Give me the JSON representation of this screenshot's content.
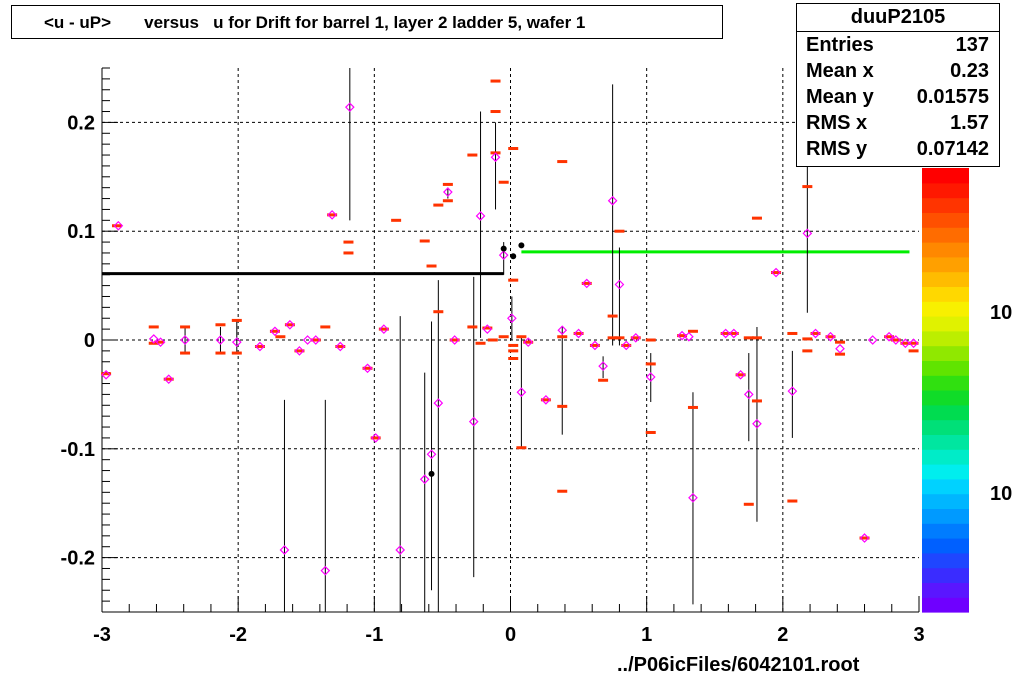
{
  "title": "<u - uP>       versus   u for Drift for barrel 1, layer 2 ladder 5, wafer 1",
  "stats": {
    "name": "duuP2105",
    "rows": [
      {
        "label": "Entries",
        "value": "137"
      },
      {
        "label": "Mean x",
        "value": "0.23"
      },
      {
        "label": "Mean y",
        "value": "0.01575"
      },
      {
        "label": "RMS x",
        "value": "1.57"
      },
      {
        "label": "RMS y",
        "value": "0.07142"
      }
    ]
  },
  "footer": "../P06icFiles/6042101.root",
  "colors": {
    "profile": "#ff00ff",
    "means": "#ff3300",
    "fit_left": "#000000",
    "fit_right": "#00ee00"
  },
  "chart_data": {
    "type": "scatter",
    "title": "<u - uP>       versus   u for Drift for barrel 1, layer 2 ladder 5, wafer 1",
    "xlim": [
      -3,
      3
    ],
    "ylim": [
      -0.25,
      0.25
    ],
    "x_ticks": [
      "-3",
      "-2",
      "-1",
      "0",
      "1",
      "2",
      "3"
    ],
    "y_ticks": [
      "-0.2",
      "-0.1",
      "0",
      "0.1",
      "0.2"
    ],
    "grid": true,
    "colorbar_labels": [
      "10",
      "10"
    ],
    "profile_points": [
      {
        "x": -2.97,
        "y": -0.032,
        "lo": -0.032,
        "hi": -0.032
      },
      {
        "x": -2.88,
        "y": 0.105,
        "lo": 0.105,
        "hi": 0.105
      },
      {
        "x": -2.62,
        "y": 0.001,
        "lo": 0.001,
        "hi": 0.001
      },
      {
        "x": -2.57,
        "y": -0.002,
        "lo": -0.002,
        "hi": -0.002
      },
      {
        "x": -2.51,
        "y": -0.036,
        "lo": -0.036,
        "hi": -0.036
      },
      {
        "x": -2.39,
        "y": 0.0,
        "lo": -0.012,
        "hi": 0.011
      },
      {
        "x": -2.13,
        "y": 0.0,
        "lo": -0.012,
        "hi": 0.012
      },
      {
        "x": -2.01,
        "y": -0.002,
        "lo": -0.012,
        "hi": 0.017
      },
      {
        "x": -1.84,
        "y": -0.006,
        "lo": -0.006,
        "hi": -0.006
      },
      {
        "x": -1.73,
        "y": 0.008,
        "lo": 0.008,
        "hi": 0.008
      },
      {
        "x": -1.66,
        "y": -0.193,
        "lo": -0.25,
        "hi": -0.055
      },
      {
        "x": -1.62,
        "y": 0.014,
        "lo": 0.014,
        "hi": 0.014
      },
      {
        "x": -1.55,
        "y": -0.01,
        "lo": -0.01,
        "hi": -0.01
      },
      {
        "x": -1.49,
        "y": 0.0,
        "lo": 0.0,
        "hi": 0.0
      },
      {
        "x": -1.43,
        "y": 0.0,
        "lo": 0.0,
        "hi": 0.0
      },
      {
        "x": -1.36,
        "y": -0.212,
        "lo": -0.25,
        "hi": -0.055
      },
      {
        "x": -1.31,
        "y": 0.115,
        "lo": 0.115,
        "hi": 0.115
      },
      {
        "x": -1.25,
        "y": -0.006,
        "lo": -0.006,
        "hi": -0.006
      },
      {
        "x": -1.18,
        "y": 0.214,
        "lo": 0.11,
        "hi": 0.25
      },
      {
        "x": -1.05,
        "y": -0.026,
        "lo": -0.026,
        "hi": -0.026
      },
      {
        "x": -0.99,
        "y": -0.09,
        "lo": -0.09,
        "hi": -0.09
      },
      {
        "x": -0.93,
        "y": 0.01,
        "lo": 0.01,
        "hi": 0.01
      },
      {
        "x": -0.81,
        "y": -0.193,
        "lo": -0.25,
        "hi": 0.022
      },
      {
        "x": -0.63,
        "y": -0.128,
        "lo": -0.25,
        "hi": -0.03
      },
      {
        "x": -0.58,
        "y": -0.105,
        "lo": -0.23,
        "hi": 0.017
      },
      {
        "x": -0.53,
        "y": -0.058,
        "lo": -0.25,
        "hi": 0.055
      },
      {
        "x": -0.46,
        "y": 0.136,
        "lo": 0.13,
        "hi": 0.14
      },
      {
        "x": -0.41,
        "y": 0.0,
        "lo": 0.0,
        "hi": 0.0
      },
      {
        "x": -0.27,
        "y": -0.075,
        "lo": -0.218,
        "hi": 0.058
      },
      {
        "x": -0.22,
        "y": 0.114,
        "lo": 0.002,
        "hi": 0.21
      },
      {
        "x": -0.17,
        "y": 0.01,
        "lo": 0.01,
        "hi": 0.01
      },
      {
        "x": -0.11,
        "y": 0.168,
        "lo": 0.12,
        "hi": 0.2
      },
      {
        "x": -0.05,
        "y": 0.078,
        "lo": 0.06,
        "hi": 0.09
      },
      {
        "x": 0.01,
        "y": 0.02,
        "lo": 0.0,
        "hi": 0.04
      },
      {
        "x": 0.08,
        "y": -0.048,
        "lo": -0.1,
        "hi": 0.003
      },
      {
        "x": 0.13,
        "y": -0.002,
        "lo": -0.002,
        "hi": -0.002
      },
      {
        "x": 0.26,
        "y": -0.055,
        "lo": -0.055,
        "hi": -0.055
      },
      {
        "x": 0.38,
        "y": 0.009,
        "lo": -0.087,
        "hi": 0.012
      },
      {
        "x": 0.5,
        "y": 0.006,
        "lo": 0.006,
        "hi": 0.006
      },
      {
        "x": 0.56,
        "y": 0.052,
        "lo": 0.052,
        "hi": 0.052
      },
      {
        "x": 0.62,
        "y": -0.005,
        "lo": -0.005,
        "hi": -0.005
      },
      {
        "x": 0.68,
        "y": -0.024,
        "lo": -0.035,
        "hi": -0.015
      },
      {
        "x": 0.75,
        "y": 0.128,
        "lo": -0.005,
        "hi": 0.235
      },
      {
        "x": 0.8,
        "y": 0.051,
        "lo": -0.005,
        "hi": 0.085
      },
      {
        "x": 0.85,
        "y": -0.005,
        "lo": -0.005,
        "hi": -0.005
      },
      {
        "x": 0.92,
        "y": 0.002,
        "lo": 0.002,
        "hi": 0.002
      },
      {
        "x": 1.03,
        "y": -0.034,
        "lo": -0.057,
        "hi": -0.012
      },
      {
        "x": 1.26,
        "y": 0.004,
        "lo": 0.004,
        "hi": 0.004
      },
      {
        "x": 1.31,
        "y": 0.003,
        "lo": 0.003,
        "hi": 0.003
      },
      {
        "x": 1.34,
        "y": -0.145,
        "lo": -0.243,
        "hi": -0.048
      },
      {
        "x": 1.58,
        "y": 0.006,
        "lo": 0.006,
        "hi": 0.006
      },
      {
        "x": 1.64,
        "y": 0.006,
        "lo": 0.006,
        "hi": 0.006
      },
      {
        "x": 1.69,
        "y": -0.032,
        "lo": -0.032,
        "hi": -0.032
      },
      {
        "x": 1.75,
        "y": -0.05,
        "lo": -0.093,
        "hi": -0.012
      },
      {
        "x": 1.81,
        "y": -0.077,
        "lo": -0.167,
        "hi": 0.012
      },
      {
        "x": 1.95,
        "y": 0.062,
        "lo": 0.062,
        "hi": 0.062
      },
      {
        "x": 2.07,
        "y": -0.047,
        "lo": -0.09,
        "hi": -0.01
      },
      {
        "x": 2.18,
        "y": 0.098,
        "lo": 0.025,
        "hi": 0.175
      },
      {
        "x": 2.24,
        "y": 0.006,
        "lo": 0.006,
        "hi": 0.006
      },
      {
        "x": 2.35,
        "y": 0.003,
        "lo": 0.003,
        "hi": 0.003
      },
      {
        "x": 2.42,
        "y": -0.008,
        "lo": -0.008,
        "hi": -0.008
      },
      {
        "x": 2.6,
        "y": -0.182,
        "lo": -0.182,
        "hi": -0.182
      },
      {
        "x": 2.66,
        "y": 0.0,
        "lo": 0.0,
        "hi": 0.0
      },
      {
        "x": 2.78,
        "y": 0.003,
        "lo": 0.003,
        "hi": 0.003
      },
      {
        "x": 2.83,
        "y": 0.0,
        "lo": 0.0,
        "hi": 0.0
      },
      {
        "x": 2.9,
        "y": -0.003,
        "lo": -0.003,
        "hi": -0.003
      },
      {
        "x": 2.96,
        "y": -0.003,
        "lo": -0.003,
        "hi": -0.003
      }
    ],
    "mean_markers": [
      {
        "x": -2.97,
        "y": -0.031
      },
      {
        "x": -2.89,
        "y": 0.105
      },
      {
        "x": -2.62,
        "y": 0.012
      },
      {
        "x": -2.62,
        "y": -0.003
      },
      {
        "x": -2.58,
        "y": -0.002
      },
      {
        "x": -2.51,
        "y": -0.036
      },
      {
        "x": -2.39,
        "y": 0.012
      },
      {
        "x": -2.39,
        "y": -0.012
      },
      {
        "x": -2.13,
        "y": 0.014
      },
      {
        "x": -2.13,
        "y": -0.012
      },
      {
        "x": -2.01,
        "y": 0.018
      },
      {
        "x": -2.01,
        "y": -0.012
      },
      {
        "x": -1.84,
        "y": -0.006
      },
      {
        "x": -1.73,
        "y": 0.008
      },
      {
        "x": -1.69,
        "y": 0.003
      },
      {
        "x": -1.62,
        "y": 0.014
      },
      {
        "x": -1.55,
        "y": -0.01
      },
      {
        "x": -1.43,
        "y": 0.0
      },
      {
        "x": -1.36,
        "y": 0.012
      },
      {
        "x": -1.31,
        "y": 0.115
      },
      {
        "x": -1.25,
        "y": -0.006
      },
      {
        "x": -1.19,
        "y": 0.09
      },
      {
        "x": -1.19,
        "y": 0.08
      },
      {
        "x": -1.05,
        "y": -0.026
      },
      {
        "x": -0.99,
        "y": -0.09
      },
      {
        "x": -0.93,
        "y": 0.01
      },
      {
        "x": -0.84,
        "y": 0.11
      },
      {
        "x": -0.63,
        "y": 0.091
      },
      {
        "x": -0.58,
        "y": 0.068
      },
      {
        "x": -0.53,
        "y": 0.124
      },
      {
        "x": -0.53,
        "y": 0.026
      },
      {
        "x": -0.46,
        "y": 0.143
      },
      {
        "x": -0.46,
        "y": 0.128
      },
      {
        "x": -0.41,
        "y": 0.0
      },
      {
        "x": -0.28,
        "y": 0.17
      },
      {
        "x": -0.28,
        "y": 0.012
      },
      {
        "x": -0.22,
        "y": -0.003
      },
      {
        "x": -0.17,
        "y": 0.011
      },
      {
        "x": -0.13,
        "y": 0.0
      },
      {
        "x": -0.11,
        "y": 0.238
      },
      {
        "x": -0.11,
        "y": 0.21
      },
      {
        "x": -0.11,
        "y": 0.172
      },
      {
        "x": -0.05,
        "y": 0.145
      },
      {
        "x": -0.05,
        "y": 0.003
      },
      {
        "x": 0.02,
        "y": 0.176
      },
      {
        "x": 0.02,
        "y": 0.055
      },
      {
        "x": 0.02,
        "y": -0.005
      },
      {
        "x": 0.02,
        "y": -0.01
      },
      {
        "x": 0.02,
        "y": -0.017
      },
      {
        "x": 0.08,
        "y": -0.099
      },
      {
        "x": 0.08,
        "y": 0.003
      },
      {
        "x": 0.13,
        "y": -0.002
      },
      {
        "x": 0.26,
        "y": -0.055
      },
      {
        "x": 0.38,
        "y": 0.164
      },
      {
        "x": 0.38,
        "y": 0.003
      },
      {
        "x": 0.38,
        "y": -0.061
      },
      {
        "x": 0.38,
        "y": -0.139
      },
      {
        "x": 0.5,
        "y": 0.006
      },
      {
        "x": 0.56,
        "y": 0.052
      },
      {
        "x": 0.62,
        "y": -0.005
      },
      {
        "x": 0.68,
        "y": -0.037
      },
      {
        "x": 0.75,
        "y": 0.022
      },
      {
        "x": 0.75,
        "y": 0.002
      },
      {
        "x": 0.8,
        "y": 0.1
      },
      {
        "x": 0.8,
        "y": 0.002
      },
      {
        "x": 0.85,
        "y": -0.005
      },
      {
        "x": 0.92,
        "y": 0.002
      },
      {
        "x": 1.03,
        "y": 0.0
      },
      {
        "x": 1.03,
        "y": -0.022
      },
      {
        "x": 1.03,
        "y": -0.085
      },
      {
        "x": 1.26,
        "y": 0.004
      },
      {
        "x": 1.34,
        "y": 0.008
      },
      {
        "x": 1.34,
        "y": -0.062
      },
      {
        "x": 1.58,
        "y": 0.006
      },
      {
        "x": 1.64,
        "y": 0.006
      },
      {
        "x": 1.69,
        "y": -0.032
      },
      {
        "x": 1.75,
        "y": 0.002
      },
      {
        "x": 1.75,
        "y": -0.151
      },
      {
        "x": 1.81,
        "y": 0.112
      },
      {
        "x": 1.81,
        "y": 0.002
      },
      {
        "x": 1.81,
        "y": -0.056
      },
      {
        "x": 1.95,
        "y": 0.062
      },
      {
        "x": 2.07,
        "y": 0.006
      },
      {
        "x": 2.07,
        "y": -0.148
      },
      {
        "x": 2.18,
        "y": 0.141
      },
      {
        "x": 2.18,
        "y": 0.001
      },
      {
        "x": 2.18,
        "y": -0.01
      },
      {
        "x": 2.24,
        "y": 0.006
      },
      {
        "x": 2.35,
        "y": 0.003
      },
      {
        "x": 2.42,
        "y": -0.002
      },
      {
        "x": 2.42,
        "y": -0.013
      },
      {
        "x": 2.6,
        "y": -0.182
      },
      {
        "x": 2.78,
        "y": 0.003
      },
      {
        "x": 2.83,
        "y": 0.0
      },
      {
        "x": 2.9,
        "y": -0.003
      },
      {
        "x": 2.96,
        "y": -0.003
      },
      {
        "x": 2.96,
        "y": -0.01
      }
    ],
    "black_points": [
      {
        "x": -0.58,
        "y": -0.123
      },
      {
        "x": -0.05,
        "y": 0.084
      },
      {
        "x": 0.02,
        "y": 0.077
      },
      {
        "x": 0.08,
        "y": 0.087
      }
    ],
    "fit_lines": [
      {
        "x": [
          -3.0,
          -0.05
        ],
        "y": [
          0.061,
          0.061
        ],
        "color": "#000000"
      },
      {
        "x": [
          0.08,
          2.93
        ],
        "y": [
          0.081,
          0.081
        ],
        "color": "#00ee00"
      }
    ]
  }
}
